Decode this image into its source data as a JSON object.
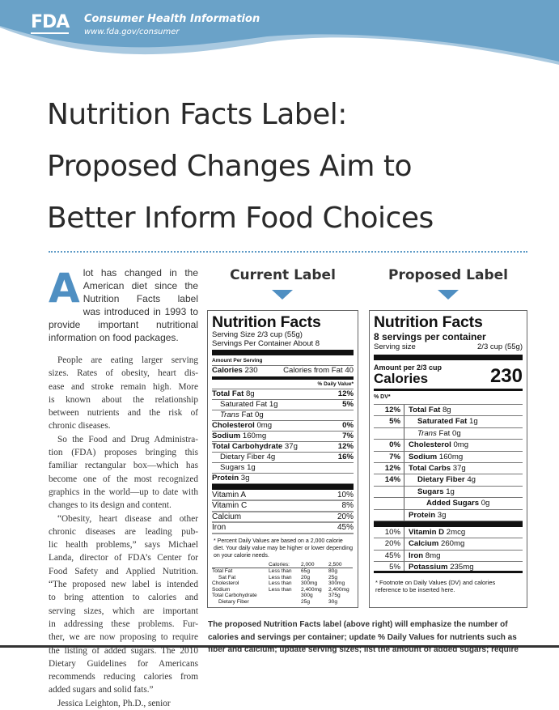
{
  "header": {
    "logo": "FDA",
    "title": "Consumer Health Information",
    "url": "www.fda.gov/consumer",
    "color": "#6aa2c8"
  },
  "title_lines": [
    "Nutrition Facts Label:",
    "Proposed Changes Aim to",
    "Better Inform Food Choices"
  ],
  "article": {
    "dropcap": "A",
    "lead_lines": [
      "lot has changed in the",
      "American diet since the",
      "Nutrition Facts label",
      "was introduced in 1993 to",
      "provide important nutritional",
      "information on food packages."
    ],
    "paragraphs": [
      [
        "People are eating larger serving",
        "sizes. Rates of obesity, heart dis-",
        "ease and stroke remain high. More",
        "is known about the relationship",
        "between nutrients and the risk of",
        "chronic diseases."
      ],
      [
        "So the Food and Drug Administra-",
        "tion (FDA) proposes bringing this",
        "familiar rectangular box—which has",
        "become one of the most recognized",
        "graphics in the world—up to date with",
        "changes to its design and content."
      ],
      [
        "“Obesity, heart disease and other",
        "chronic diseases are leading pub-",
        "lic health problems,” says Michael",
        "Landa, director of FDA’s Center for",
        "Food Safety and Applied Nutrition.",
        "“The proposed new label is intended",
        "to bring attention to calories and",
        "serving sizes, which are important",
        "in addressing these problems. Fur-",
        "ther, we are now proposing to require",
        "the listing of added sugars. The 2010",
        "Dietary Guidelines for Americans",
        "recommends reducing calories from",
        "added sugars and solid fats.”"
      ],
      [
        "Jessica Leighton, Ph.D., senior"
      ]
    ]
  },
  "current": {
    "heading": "Current Label",
    "title": "Nutrition Facts",
    "serving_size": "Serving Size 2/3 cup (55g)",
    "servings": "Servings Per Container About 8",
    "amount_per": "Amount Per Serving",
    "calories_label": "Calories",
    "calories_value": "230",
    "calories_fat": "Calories from Fat 40",
    "dv_header": "% Daily Value*",
    "rows": [
      {
        "name": "Total Fat",
        "amt": "8g",
        "dv": "12%",
        "bold": true,
        "indent": false,
        "italic": false
      },
      {
        "name": "Saturated Fat",
        "amt": "1g",
        "dv": "5%",
        "bold": false,
        "indent": true,
        "italic": false
      },
      {
        "name": "Trans",
        "amt": "Fat 0g",
        "dv": "",
        "bold": false,
        "indent": true,
        "italic": true
      },
      {
        "name": "Cholesterol",
        "amt": "0mg",
        "dv": "0%",
        "bold": true,
        "indent": false,
        "italic": false
      },
      {
        "name": "Sodium",
        "amt": "160mg",
        "dv": "7%",
        "bold": true,
        "indent": false,
        "italic": false
      },
      {
        "name": "Total Carbohydrate",
        "amt": "37g",
        "dv": "12%",
        "bold": true,
        "indent": false,
        "italic": false
      },
      {
        "name": "Dietary Fiber",
        "amt": "4g",
        "dv": "16%",
        "bold": false,
        "indent": true,
        "italic": false
      },
      {
        "name": "Sugars",
        "amt": "1g",
        "dv": "",
        "bold": false,
        "indent": true,
        "italic": false
      },
      {
        "name": "Protein",
        "amt": "3g",
        "dv": "",
        "bold": true,
        "indent": false,
        "italic": false
      }
    ],
    "vitamins": [
      {
        "name": "Vitamin A",
        "dv": "10%"
      },
      {
        "name": "Vitamin C",
        "dv": "8%"
      },
      {
        "name": "Calcium",
        "dv": "20%"
      },
      {
        "name": "Iron",
        "dv": "45%"
      }
    ],
    "footnote": "* Percent Daily Values are based on a 2,000 calorie diet. Your daily value may be higher or lower depending on your calorie needs.",
    "table_header": [
      "",
      "Calories:",
      "2,000",
      "2,500"
    ],
    "table_rows": [
      [
        "Total Fat",
        "Less than",
        "65g",
        "80g"
      ],
      [
        "Sat Fat",
        "Less than",
        "20g",
        "25g"
      ],
      [
        "Cholesterol",
        "Less than",
        "300mg",
        "300mg"
      ],
      [
        "Sodium",
        "Less than",
        "2,400mg",
        "2,400mg"
      ],
      [
        "Total Carbohydrate",
        "",
        "300g",
        "375g"
      ],
      [
        "Dietary Fiber",
        "",
        "25g",
        "30g"
      ]
    ]
  },
  "proposed": {
    "heading": "Proposed Label",
    "title": "Nutrition Facts",
    "servings": "8 servings per container",
    "serving_size_label": "Serving size",
    "serving_size_value": "2/3 cup (55g)",
    "amount_per": "Amount per 2/3 cup",
    "calories_label": "Calories",
    "calories_value": "230",
    "dv_header": "% DV*",
    "rows": [
      {
        "dv": "12%",
        "name": "Total Fat",
        "amt": "8g",
        "level": 0
      },
      {
        "dv": "5%",
        "name": "Saturated Fat",
        "amt": "1g",
        "level": 1
      },
      {
        "dv": "",
        "name": "Trans",
        "amt": "Fat 0g",
        "level": 1,
        "italic": true
      },
      {
        "dv": "0%",
        "name": "Cholesterol",
        "amt": "0mg",
        "level": 0
      },
      {
        "dv": "7%",
        "name": "Sodium",
        "amt": "160mg",
        "level": 0
      },
      {
        "dv": "12%",
        "name": "Total Carbs",
        "amt": "37g",
        "level": 0
      },
      {
        "dv": "14%",
        "name": "Dietary Fiber",
        "amt": "4g",
        "level": 1
      },
      {
        "dv": "",
        "name": "Sugars",
        "amt": "1g",
        "level": 1
      },
      {
        "dv": "",
        "name": "Added Sugars",
        "amt": "0g",
        "level": 2
      },
      {
        "dv": "",
        "name": "Protein",
        "amt": "3g",
        "level": 0
      }
    ],
    "vitamins": [
      {
        "dv": "10%",
        "name": "Vitamin D",
        "amt": "2mcg"
      },
      {
        "dv": "20%",
        "name": "Calcium",
        "amt": "260mg"
      },
      {
        "dv": "45%",
        "name": "Iron",
        "amt": "8mg"
      },
      {
        "dv": "5%",
        "name": "Potassium",
        "amt": "235mg"
      }
    ],
    "footnote": "* Footnote on Daily Values (DV) and calories reference to be inserted here."
  },
  "caption_lines": [
    "The proposed Nutrition Facts label (above right) will emphasize the number of",
    "calories and servings per container; update % Daily Values for nutrients such as",
    "fiber and calcium; update serving sizes; list the amount of added sugars; require"
  ],
  "accent": "#4f8fc2"
}
